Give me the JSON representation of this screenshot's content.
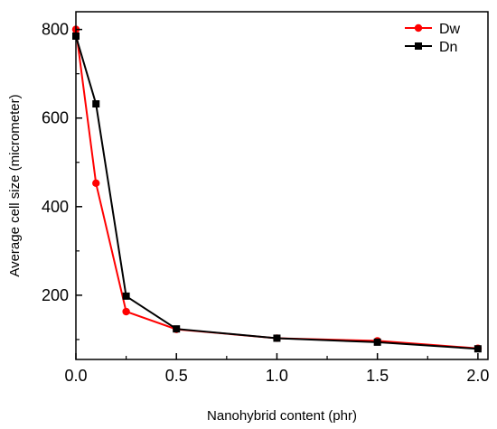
{
  "chart_data": {
    "type": "line",
    "title": "",
    "xlabel": "Nanohybrid content (phr)",
    "ylabel": "Average cell size (micrometer)",
    "xlim": [
      0.0,
      2.05
    ],
    "ylim": [
      55,
      840
    ],
    "x_ticks": [
      0.0,
      0.5,
      1.0,
      1.5,
      2.0
    ],
    "x_tick_labels": [
      "0.0",
      "0.5",
      "1.0",
      "1.5",
      "2.0"
    ],
    "y_ticks": [
      200,
      400,
      600,
      800
    ],
    "y_tick_labels": [
      "200",
      "400",
      "600",
      "800"
    ],
    "grid": false,
    "legend": {
      "position": "top-right",
      "entries": [
        "Dw",
        "Dn"
      ]
    },
    "series": [
      {
        "name": "Dw",
        "color": "#ff0000",
        "marker": "circle",
        "x": [
          0.0,
          0.1,
          0.25,
          0.5,
          1.0,
          1.5,
          2.0
        ],
        "y": [
          800,
          453,
          163,
          123,
          103,
          97,
          80
        ]
      },
      {
        "name": "Dn",
        "color": "#000000",
        "marker": "square",
        "x": [
          0.0,
          0.1,
          0.25,
          0.5,
          1.0,
          1.5,
          2.0
        ],
        "y": [
          785,
          632,
          198,
          124,
          103,
          94,
          79
        ]
      }
    ]
  }
}
